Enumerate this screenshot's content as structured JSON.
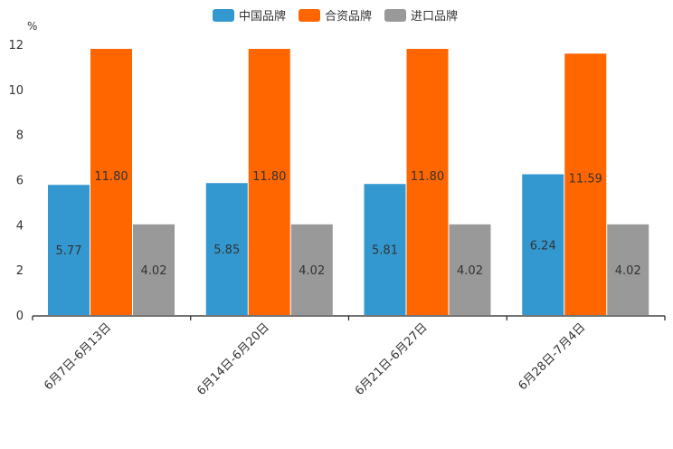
{
  "chart_data": {
    "type": "bar",
    "unit": "%",
    "categories": [
      "6月7日-6月13日",
      "6月14日-6月20日",
      "6月21日-6月27日",
      "6月28日-7月4日"
    ],
    "series": [
      {
        "name": "中国品牌",
        "color": "#3398d0",
        "values": [
          5.77,
          5.85,
          5.81,
          6.24
        ],
        "labels": [
          "5.77",
          "5.85",
          "5.81",
          "6.24"
        ]
      },
      {
        "name": "合资品牌",
        "color": "#ff6600",
        "values": [
          11.8,
          11.8,
          11.8,
          11.59
        ],
        "labels": [
          "11.80",
          "11.80",
          "11.80",
          "11.59"
        ]
      },
      {
        "name": "进口品牌",
        "color": "#999999",
        "values": [
          4.02,
          4.02,
          4.02,
          4.02
        ],
        "labels": [
          "4.02",
          "4.02",
          "4.02",
          "4.02"
        ]
      }
    ],
    "ylim": [
      0,
      12
    ],
    "yticks": [
      "0",
      "2",
      "4",
      "6",
      "8",
      "10",
      "12"
    ],
    "legend_position": "top-center",
    "grid": false
  }
}
